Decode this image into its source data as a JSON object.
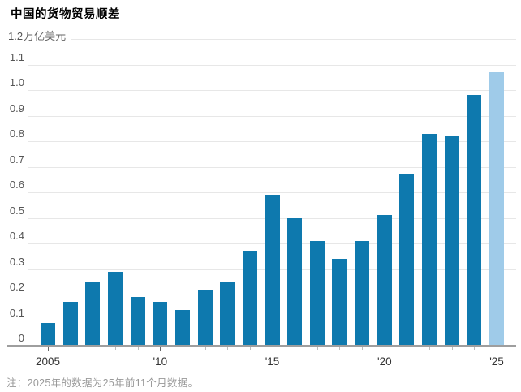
{
  "footnote": "注：2025年的数据为25年前11个月数据。",
  "chart_data": {
    "type": "bar",
    "title": "中国的货物贸易顺差",
    "xlabel": "",
    "ylabel": "万亿美元",
    "ylim": [
      0,
      1.2
    ],
    "grid": true,
    "categories": [
      "2005",
      "2006",
      "2007",
      "2008",
      "2009",
      "2010",
      "2011",
      "2012",
      "2013",
      "2014",
      "2015",
      "2016",
      "2017",
      "2018",
      "2019",
      "2020",
      "2021",
      "2022",
      "2023",
      "2024",
      "2025"
    ],
    "values": [
      0.09,
      0.17,
      0.25,
      0.29,
      0.19,
      0.17,
      0.14,
      0.22,
      0.25,
      0.37,
      0.59,
      0.5,
      0.41,
      0.34,
      0.41,
      0.51,
      0.67,
      0.83,
      0.82,
      0.98,
      1.07
    ],
    "highlight_index": 20,
    "highlight_note": "2025为前11个月数据",
    "y_axis": {
      "top_value": "1.2",
      "unit": "万亿美元",
      "tick_labels": [
        "1.1",
        "1.0",
        "0.9",
        "0.8",
        "0.7",
        "0.6",
        "0.5",
        "0.4",
        "0.3",
        "0.2",
        "0.1",
        "0"
      ]
    },
    "x_axis": {
      "tick_labels": [
        {
          "bar_index": 0,
          "label": "2005"
        },
        {
          "bar_index": 5,
          "label": "'10"
        },
        {
          "bar_index": 10,
          "label": "'15"
        },
        {
          "bar_index": 15,
          "label": "'20"
        },
        {
          "bar_index": 20,
          "label": "'25"
        }
      ]
    },
    "colors": {
      "bar": "#0e79ae",
      "bar_highlight": "#9fcbe9",
      "gridline": "#e7e7e7",
      "axis": "#9e9e9e",
      "title_text": "#000000",
      "axis_label_text": "#555555",
      "x_label_text": "#333333",
      "footnote_text": "#999999"
    }
  }
}
